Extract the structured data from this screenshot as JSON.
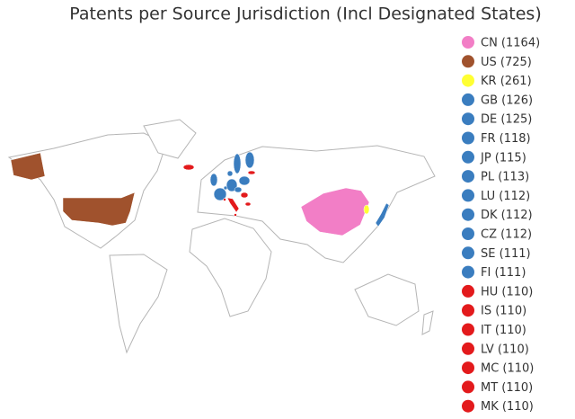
{
  "chart_data": {
    "type": "choropleth",
    "title": "Patents per Source Jurisdiction (Incl Designated States)",
    "categories": [
      "CN",
      "US",
      "KR",
      "GB",
      "DE",
      "FR",
      "JP",
      "PL",
      "LU",
      "DK",
      "CZ",
      "SE",
      "FI",
      "HU",
      "IS",
      "IT",
      "LV",
      "MC",
      "MT",
      "MK"
    ],
    "values": [
      1164,
      725,
      261,
      126,
      125,
      118,
      115,
      113,
      112,
      112,
      112,
      111,
      111,
      110,
      110,
      110,
      110,
      110,
      110,
      110
    ],
    "value_labels": [
      "CN (1164)",
      "US (725)",
      "KR (261)",
      "GB (126)",
      "DE (125)",
      "FR (118)",
      "JP (115)",
      "PL (113)",
      "LU (112)",
      "DK (112)",
      "CZ (112)",
      "SE (111)",
      "FI (111)",
      "HU (110)",
      "IS (110)",
      "IT (110)",
      "LV (110)",
      "MC (110)",
      "MT (110)",
      "MK (110)"
    ],
    "colors": [
      "#f27ec6",
      "#a0522d",
      "#ffff33",
      "#3a7dbf",
      "#3a7dbf",
      "#3a7dbf",
      "#3a7dbf",
      "#3a7dbf",
      "#3a7dbf",
      "#3a7dbf",
      "#3a7dbf",
      "#3a7dbf",
      "#3a7dbf",
      "#e31a1c",
      "#e31a1c",
      "#e31a1c",
      "#e31a1c",
      "#e31a1c",
      "#e31a1c",
      "#e31a1c"
    ],
    "legend": "right"
  }
}
